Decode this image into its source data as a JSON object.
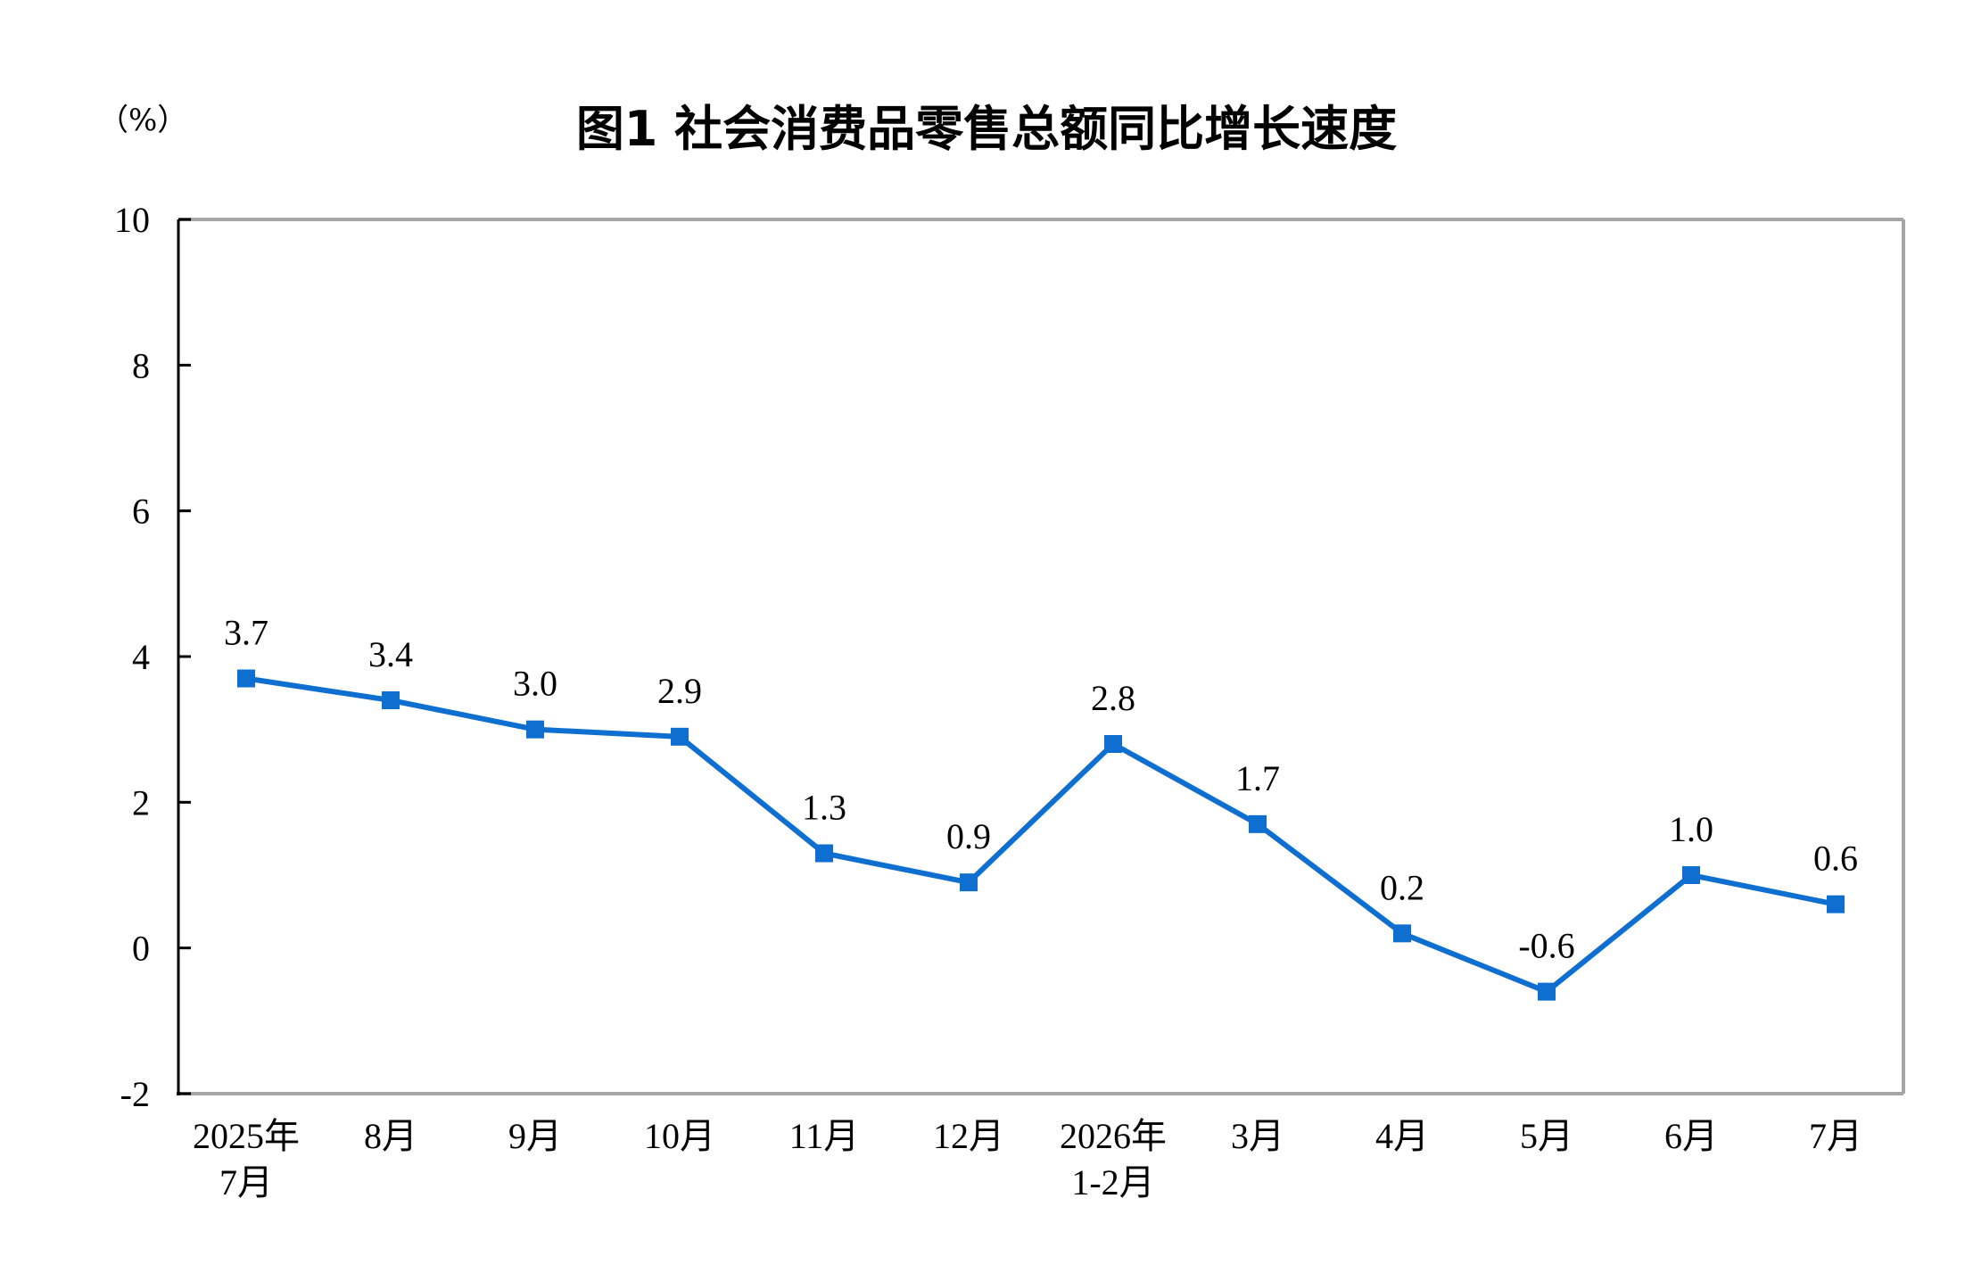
{
  "chart_data": {
    "type": "line",
    "title": "图1  社会消费品零售总额同比增长速度",
    "unit_label": "（%）",
    "xlabel": "",
    "ylabel": "",
    "ylim": [
      -2,
      10
    ],
    "yticks": [
      -2,
      0,
      2,
      4,
      6,
      8,
      10
    ],
    "grid": false,
    "categories": [
      [
        "2025年",
        "7月"
      ],
      [
        "8月"
      ],
      [
        "9月"
      ],
      [
        "10月"
      ],
      [
        "11月"
      ],
      [
        "12月"
      ],
      [
        "2026年",
        "1-2月"
      ],
      [
        "3月"
      ],
      [
        "4月"
      ],
      [
        "5月"
      ],
      [
        "6月"
      ],
      [
        "7月"
      ]
    ],
    "series": [
      {
        "values": [
          3.7,
          3.4,
          3.0,
          2.9,
          1.3,
          0.9,
          2.8,
          1.7,
          0.2,
          -0.6,
          1.0,
          0.6
        ],
        "labels": [
          "3.7",
          "3.4",
          "3.0",
          "2.9",
          "1.3",
          "0.9",
          "2.8",
          "1.7",
          "0.2",
          "-0.6",
          "1.0",
          "0.6"
        ],
        "color": "#0F6FD1",
        "marker": "square"
      }
    ],
    "colors": {
      "axis": "#000000",
      "frame": "#A6A6A6"
    }
  }
}
